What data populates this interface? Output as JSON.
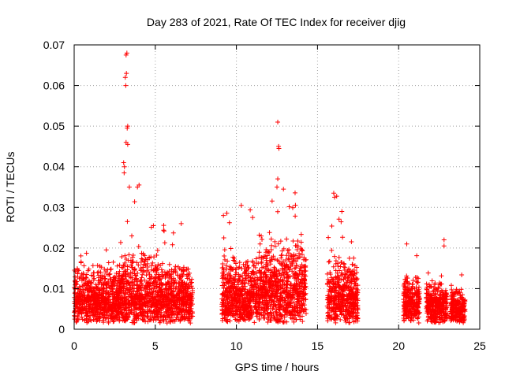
{
  "chart_data": {
    "type": "scatter",
    "title": "Day 283 of 2021, Rate Of TEC Index for receiver djig",
    "xlabel": "GPS time / hours",
    "ylabel": "ROTI / TECUs",
    "xlim": [
      0,
      25
    ],
    "ylim": [
      0,
      0.07
    ],
    "xticks": [
      0,
      5,
      10,
      15,
      20,
      25
    ],
    "xtick_labels": [
      "0",
      "5",
      "10",
      "15",
      "20",
      "25"
    ],
    "yticks": [
      0,
      0.01,
      0.02,
      0.03,
      0.04,
      0.05,
      0.06,
      0.07
    ],
    "ytick_labels": [
      "0",
      "0.01",
      "0.02",
      "0.03",
      "0.04",
      "0.05",
      "0.06",
      "0.07"
    ],
    "grid": true,
    "marker": "+",
    "series_color": "#ff0000",
    "clusters": [
      {
        "x": [
          0.0,
          2.9
        ],
        "base": 0.006,
        "spread": 0.009,
        "max": 0.022
      },
      {
        "x": [
          2.9,
          5.3
        ],
        "base": 0.006,
        "spread": 0.012,
        "max": 0.035
      },
      {
        "x": [
          5.3,
          7.3
        ],
        "base": 0.007,
        "spread": 0.008,
        "max": 0.027
      },
      {
        "x": [
          9.1,
          11.4
        ],
        "base": 0.007,
        "spread": 0.01,
        "max": 0.031
      },
      {
        "x": [
          11.4,
          14.3
        ],
        "base": 0.009,
        "spread": 0.013,
        "max": 0.035
      },
      {
        "x": [
          15.6,
          17.5
        ],
        "base": 0.007,
        "spread": 0.01,
        "max": 0.033
      },
      {
        "x": [
          20.3,
          21.3
        ],
        "base": 0.007,
        "spread": 0.006,
        "max": 0.021
      },
      {
        "x": [
          21.7,
          23.0
        ],
        "base": 0.006,
        "spread": 0.005,
        "max": 0.022
      },
      {
        "x": [
          23.2,
          24.1
        ],
        "base": 0.005,
        "spread": 0.004,
        "max": 0.014
      }
    ],
    "peaks": [
      {
        "x": 3.2,
        "y": 0.0675
      },
      {
        "x": 3.25,
        "y": 0.068
      },
      {
        "x": 3.15,
        "y": 0.062
      },
      {
        "x": 3.22,
        "y": 0.063
      },
      {
        "x": 3.18,
        "y": 0.06
      },
      {
        "x": 3.3,
        "y": 0.05
      },
      {
        "x": 3.27,
        "y": 0.0495
      },
      {
        "x": 3.2,
        "y": 0.046
      },
      {
        "x": 3.3,
        "y": 0.0455
      },
      {
        "x": 3.05,
        "y": 0.041
      },
      {
        "x": 3.1,
        "y": 0.04
      },
      {
        "x": 3.08,
        "y": 0.0385
      },
      {
        "x": 3.4,
        "y": 0.035
      },
      {
        "x": 4.0,
        "y": 0.0355
      },
      {
        "x": 3.9,
        "y": 0.035
      },
      {
        "x": 12.55,
        "y": 0.051
      },
      {
        "x": 12.6,
        "y": 0.045
      },
      {
        "x": 12.62,
        "y": 0.0445
      },
      {
        "x": 12.55,
        "y": 0.037
      },
      {
        "x": 12.5,
        "y": 0.035
      },
      {
        "x": 12.9,
        "y": 0.0345
      },
      {
        "x": 16.0,
        "y": 0.0335
      },
      {
        "x": 16.05,
        "y": 0.0325
      },
      {
        "x": 10.3,
        "y": 0.0305
      },
      {
        "x": 11.0,
        "y": 0.0275
      },
      {
        "x": 9.2,
        "y": 0.028
      },
      {
        "x": 16.5,
        "y": 0.029
      },
      {
        "x": 6.6,
        "y": 0.026
      },
      {
        "x": 22.8,
        "y": 0.022
      },
      {
        "x": 22.8,
        "y": 0.0205
      },
      {
        "x": 20.5,
        "y": 0.021
      }
    ]
  }
}
